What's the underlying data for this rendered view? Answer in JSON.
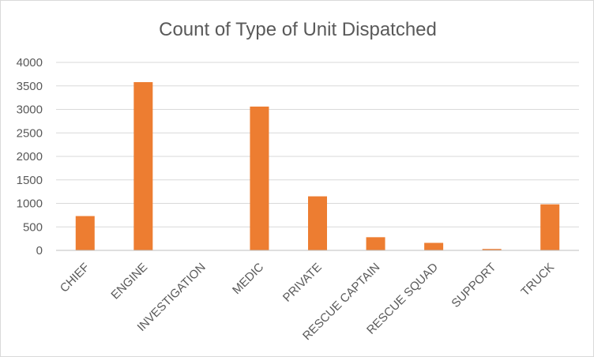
{
  "chart_data": {
    "type": "bar",
    "title": "Count of Type of Unit Dispatched",
    "xlabel": "",
    "ylabel": "",
    "categories": [
      "CHIEF",
      "ENGINE",
      "INVESTIGATION",
      "MEDIC",
      "PRIVATE",
      "RESCUE CAPTAIN",
      "RESCUE SQUAD",
      "SUPPORT",
      "TRUCK"
    ],
    "values": [
      730,
      3580,
      0,
      3060,
      1150,
      280,
      160,
      30,
      980
    ],
    "ylim": [
      0,
      4000
    ],
    "yticks": [
      0,
      500,
      1000,
      1500,
      2000,
      2500,
      3000,
      3500,
      4000
    ],
    "grid": true,
    "legend": "none",
    "bar_color": "#ED7D31"
  }
}
